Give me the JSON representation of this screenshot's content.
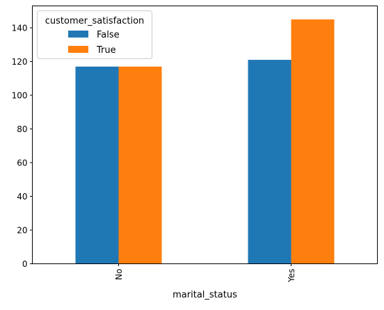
{
  "chart_data": {
    "type": "bar",
    "xlabel": "marital_status",
    "ylabel": "",
    "categories": [
      "No",
      "Yes"
    ],
    "ylim": [
      0,
      153
    ],
    "yticks": [
      0,
      20,
      40,
      60,
      80,
      100,
      120,
      140
    ],
    "legend_title": "customer_satisfaction",
    "legend_position": "top-left",
    "grid": false,
    "series": [
      {
        "name": "False",
        "values": [
          117,
          121
        ],
        "color": "#1f77b4"
      },
      {
        "name": "True",
        "values": [
          117,
          145
        ],
        "color": "#ff7f0e"
      }
    ]
  }
}
